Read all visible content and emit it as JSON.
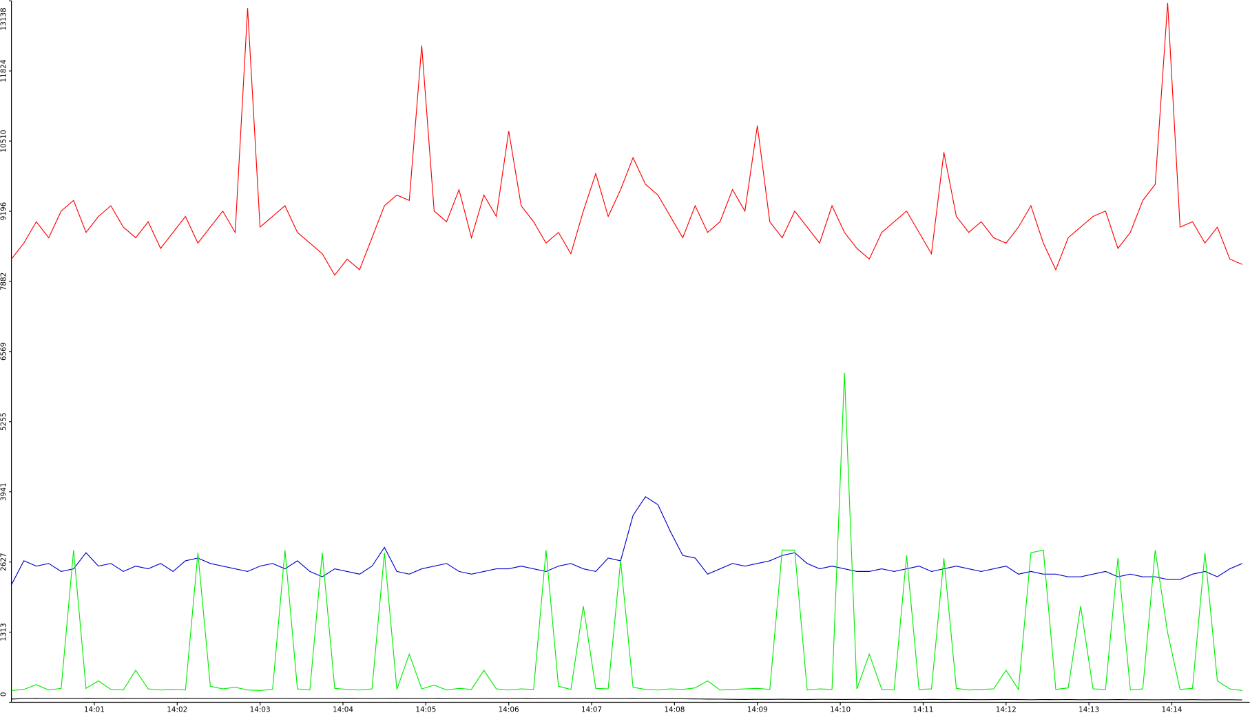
{
  "chart_data": {
    "type": "line",
    "x": [
      0,
      0.15,
      0.3,
      0.45,
      0.6,
      0.75,
      0.9,
      1.05,
      1.2,
      1.35,
      1.5,
      1.65,
      1.8,
      1.95,
      2.1,
      2.25,
      2.4,
      2.55,
      2.7,
      2.85,
      3,
      3.15,
      3.3,
      3.45,
      3.6,
      3.75,
      3.9,
      4.05,
      4.2,
      4.35,
      4.5,
      4.65,
      4.8,
      4.95,
      5.1,
      5.25,
      5.4,
      5.55,
      5.7,
      5.85,
      6,
      6.15,
      6.3,
      6.45,
      6.6,
      6.75,
      6.9,
      7.05,
      7.2,
      7.35,
      7.5,
      7.65,
      7.8,
      7.95,
      8.1,
      8.25,
      8.4,
      8.55,
      8.7,
      8.85,
      9,
      9.15,
      9.3,
      9.45,
      9.6,
      9.75,
      9.9,
      10.05,
      10.2,
      10.35,
      10.5,
      10.65,
      10.8,
      10.95,
      11.1,
      11.25,
      11.4,
      11.55,
      11.7,
      11.85,
      12,
      12.15,
      12.3,
      12.45,
      12.6,
      12.75,
      12.9,
      13.05,
      13.2,
      13.35,
      13.5,
      13.65,
      13.8,
      13.95,
      14.1,
      14.25,
      14.4,
      14.55,
      14.7,
      14.85
    ],
    "xlim": [
      0,
      14.94
    ],
    "xticks": [
      {
        "value": 1,
        "label": "14:01"
      },
      {
        "value": 2,
        "label": "14:02"
      },
      {
        "value": 3,
        "label": "14:03"
      },
      {
        "value": 4,
        "label": "14:04"
      },
      {
        "value": 5,
        "label": "14:05"
      },
      {
        "value": 6,
        "label": "14:06"
      },
      {
        "value": 7,
        "label": "14:07"
      },
      {
        "value": 8,
        "label": "14:08"
      },
      {
        "value": 9,
        "label": "14:09"
      },
      {
        "value": 10,
        "label": "14:10"
      },
      {
        "value": 11,
        "label": "14:11"
      },
      {
        "value": 12,
        "label": "14:12"
      },
      {
        "value": 13,
        "label": "14:13"
      },
      {
        "value": 14,
        "label": "14:14"
      }
    ],
    "ylim": [
      0,
      13138
    ],
    "yticks": [
      0,
      1313,
      2627,
      3941,
      5255,
      6569,
      7882,
      9196,
      10510,
      11824,
      13138
    ],
    "series": [
      {
        "color": "#ff0000",
        "values": [
          8300,
          8600,
          9000,
          8700,
          9200,
          9400,
          8800,
          9100,
          9300,
          8900,
          8700,
          9000,
          8500,
          8800,
          9100,
          8600,
          8900,
          9200,
          8800,
          13000,
          8900,
          9100,
          9300,
          8800,
          8600,
          8400,
          8000,
          8300,
          8100,
          8700,
          9300,
          9500,
          9400,
          12300,
          9200,
          9000,
          9600,
          8700,
          9500,
          9100,
          10700,
          9300,
          9000,
          8600,
          8800,
          8400,
          9200,
          9900,
          9100,
          9600,
          10200,
          9700,
          9500,
          9100,
          8700,
          9300,
          8800,
          9000,
          9600,
          9200,
          10800,
          9000,
          8700,
          9200,
          8900,
          8600,
          9300,
          8800,
          8500,
          8300,
          8800,
          9000,
          9200,
          8800,
          8400,
          10300,
          9100,
          8800,
          9000,
          8700,
          8600,
          8900,
          9300,
          8600,
          8100,
          8700,
          8900,
          9100,
          9200,
          8500,
          8800,
          9400,
          9700,
          13100,
          8900,
          9000,
          8600,
          8900,
          8300,
          8200
        ]
      },
      {
        "color": "#0000cc",
        "values": [
          2200,
          2650,
          2550,
          2600,
          2450,
          2500,
          2800,
          2550,
          2600,
          2450,
          2550,
          2500,
          2600,
          2450,
          2650,
          2700,
          2600,
          2550,
          2500,
          2450,
          2550,
          2600,
          2500,
          2650,
          2450,
          2350,
          2500,
          2450,
          2400,
          2550,
          2900,
          2450,
          2400,
          2500,
          2550,
          2600,
          2450,
          2400,
          2450,
          2500,
          2500,
          2550,
          2500,
          2450,
          2550,
          2600,
          2500,
          2450,
          2700,
          2650,
          3500,
          3850,
          3700,
          3200,
          2750,
          2700,
          2400,
          2500,
          2600,
          2550,
          2600,
          2650,
          2750,
          2800,
          2600,
          2500,
          2550,
          2500,
          2450,
          2450,
          2500,
          2450,
          2500,
          2550,
          2450,
          2500,
          2550,
          2500,
          2450,
          2500,
          2550,
          2400,
          2450,
          2400,
          2400,
          2350,
          2350,
          2400,
          2450,
          2350,
          2400,
          2350,
          2350,
          2300,
          2300,
          2400,
          2450,
          2350,
          2500,
          2600
        ]
      },
      {
        "color": "#00ee00",
        "values": [
          220,
          240,
          330,
          230,
          260,
          2850,
          260,
          400,
          240,
          230,
          600,
          250,
          230,
          240,
          230,
          2800,
          300,
          250,
          280,
          230,
          220,
          240,
          2850,
          250,
          230,
          2800,
          260,
          240,
          230,
          250,
          2800,
          240,
          900,
          250,
          320,
          230,
          260,
          240,
          600,
          250,
          230,
          250,
          240,
          2850,
          300,
          240,
          1800,
          260,
          250,
          2650,
          280,
          240,
          230,
          250,
          240,
          270,
          400,
          230,
          240,
          250,
          260,
          240,
          2850,
          2850,
          230,
          250,
          240,
          6170,
          250,
          900,
          240,
          230,
          2750,
          240,
          250,
          2700,
          260,
          230,
          240,
          250,
          600,
          240,
          2800,
          2850,
          240,
          270,
          1800,
          250,
          240,
          2700,
          230,
          250,
          2850,
          1300,
          240,
          260,
          2800,
          400,
          250,
          220
        ]
      },
      {
        "color": "#000000",
        "values": [
          60,
          70,
          75,
          70,
          72,
          68,
          74,
          70,
          72,
          75,
          70,
          73,
          71,
          74,
          76,
          72,
          70,
          73,
          75,
          72,
          70,
          71,
          73,
          70,
          68,
          72,
          70,
          74,
          71,
          69,
          73,
          75,
          70,
          72,
          71,
          69,
          72,
          70,
          73,
          71,
          70,
          72,
          69,
          71,
          70,
          73,
          71,
          72,
          70,
          69,
          71,
          68,
          70,
          67,
          65,
          62,
          60,
          58,
          55,
          52,
          55,
          53,
          56,
          54,
          52,
          55,
          53,
          52,
          54,
          51,
          53,
          52,
          50,
          51,
          53,
          50,
          52,
          51,
          49,
          50,
          52,
          50,
          48,
          51,
          49,
          50,
          47,
          49,
          48,
          50,
          47,
          48,
          46,
          48,
          47,
          49,
          46,
          48,
          47,
          45
        ]
      }
    ]
  }
}
